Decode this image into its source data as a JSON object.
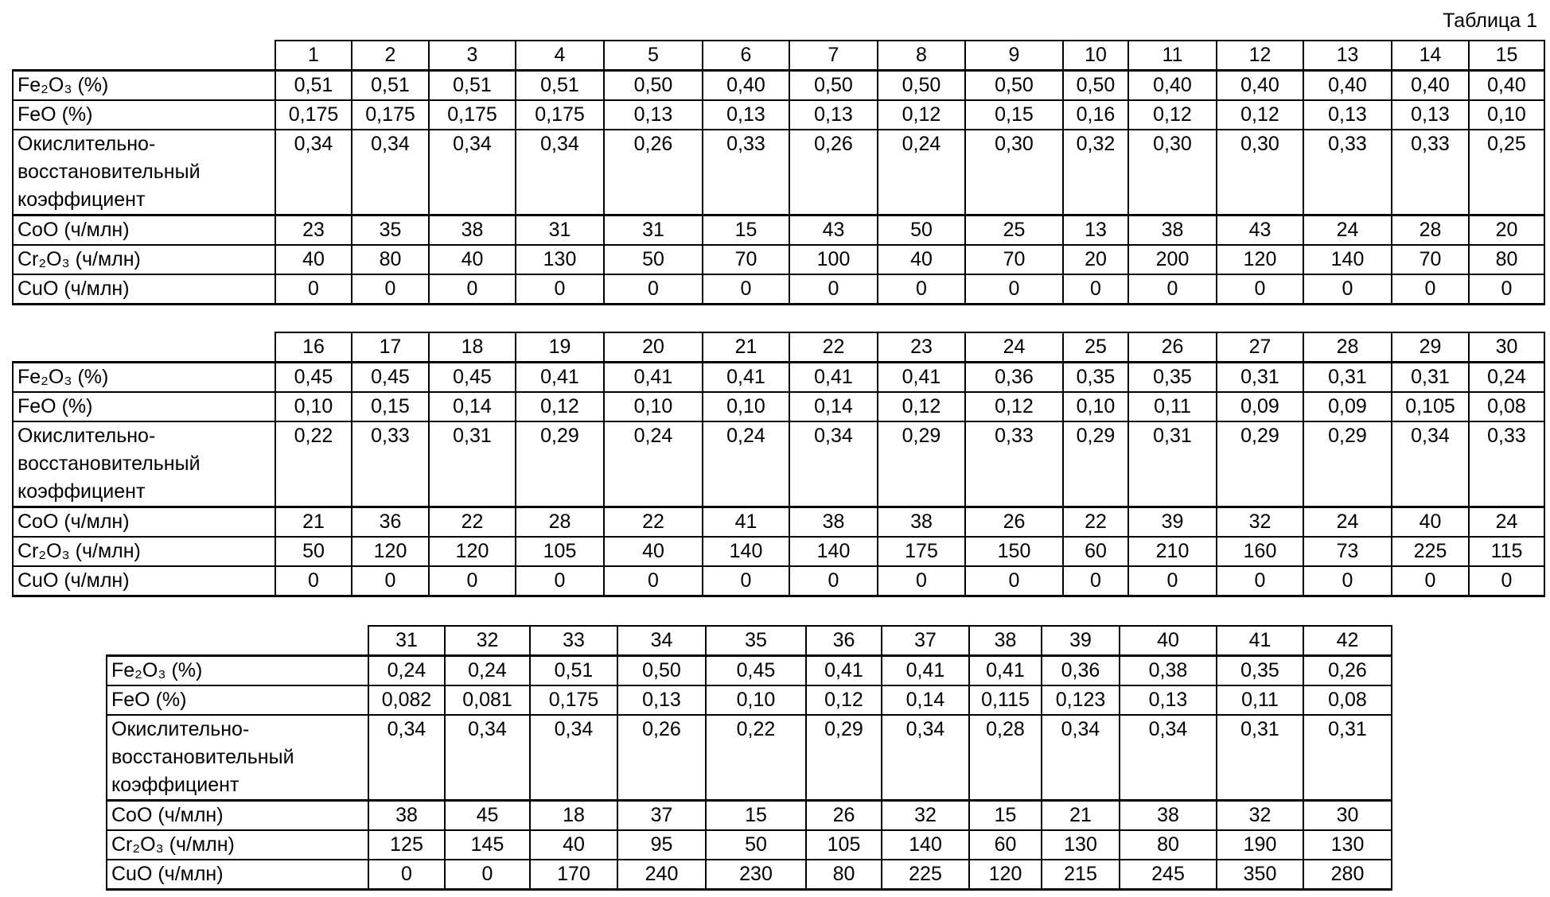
{
  "title": "Таблица 1",
  "row_labels": {
    "fe2o3": "Fe₂O₃ (%)",
    "feo": "FeO (%)",
    "redox": "Окислительно-восстановительный коэффициент",
    "coo": "CoO (ч/млн)",
    "cr2o3": "Cr₂O₃ (ч/млн)",
    "cuo": "CuO (ч/млн)"
  },
  "tables": [
    {
      "columns": [
        "1",
        "2",
        "3",
        "4",
        "5",
        "6",
        "7",
        "8",
        "9",
        "10",
        "11",
        "12",
        "13",
        "14",
        "15"
      ],
      "fe2o3": [
        "0,51",
        "0,51",
        "0,51",
        "0,51",
        "0,50",
        "0,40",
        "0,50",
        "0,50",
        "0,50",
        "0,50",
        "0,40",
        "0,40",
        "0,40",
        "0,40",
        "0,40"
      ],
      "feo": [
        "0,175",
        "0,175",
        "0,175",
        "0,175",
        "0,13",
        "0,13",
        "0,13",
        "0,12",
        "0,15",
        "0,16",
        "0,12",
        "0,12",
        "0,13",
        "0,13",
        "0,10"
      ],
      "redox": [
        "0,34",
        "0,34",
        "0,34",
        "0,34",
        "0,26",
        "0,33",
        "0,26",
        "0,24",
        "0,30",
        "0,32",
        "0,30",
        "0,30",
        "0,33",
        "0,33",
        "0,25"
      ],
      "coo": [
        "23",
        "35",
        "38",
        "31",
        "31",
        "15",
        "43",
        "50",
        "25",
        "13",
        "38",
        "43",
        "24",
        "28",
        "20"
      ],
      "cr2o3": [
        "40",
        "80",
        "40",
        "130",
        "50",
        "70",
        "100",
        "40",
        "70",
        "20",
        "200",
        "120",
        "140",
        "70",
        "80"
      ],
      "cuo": [
        "0",
        "0",
        "0",
        "0",
        "0",
        "0",
        "0",
        "0",
        "0",
        "0",
        "0",
        "0",
        "0",
        "0",
        "0"
      ]
    },
    {
      "columns": [
        "16",
        "17",
        "18",
        "19",
        "20",
        "21",
        "22",
        "23",
        "24",
        "25",
        "26",
        "27",
        "28",
        "29",
        "30"
      ],
      "fe2o3": [
        "0,45",
        "0,45",
        "0,45",
        "0,41",
        "0,41",
        "0,41",
        "0,41",
        "0,41",
        "0,36",
        "0,35",
        "0,35",
        "0,31",
        "0,31",
        "0,31",
        "0,24"
      ],
      "feo": [
        "0,10",
        "0,15",
        "0,14",
        "0,12",
        "0,10",
        "0,10",
        "0,14",
        "0,12",
        "0,12",
        "0,10",
        "0,11",
        "0,09",
        "0,09",
        "0,105",
        "0,08"
      ],
      "redox": [
        "0,22",
        "0,33",
        "0,31",
        "0,29",
        "0,24",
        "0,24",
        "0,34",
        "0,29",
        "0,33",
        "0,29",
        "0,31",
        "0,29",
        "0,29",
        "0,34",
        "0,33"
      ],
      "coo": [
        "21",
        "36",
        "22",
        "28",
        "22",
        "41",
        "38",
        "38",
        "26",
        "22",
        "39",
        "32",
        "24",
        "40",
        "24"
      ],
      "cr2o3": [
        "50",
        "120",
        "120",
        "105",
        "40",
        "140",
        "140",
        "175",
        "150",
        "60",
        "210",
        "160",
        "73",
        "225",
        "115"
      ],
      "cuo": [
        "0",
        "0",
        "0",
        "0",
        "0",
        "0",
        "0",
        "0",
        "0",
        "0",
        "0",
        "0",
        "0",
        "0",
        "0"
      ]
    },
    {
      "columns": [
        "31",
        "32",
        "33",
        "34",
        "35",
        "36",
        "37",
        "38",
        "39",
        "40",
        "41",
        "42"
      ],
      "fe2o3": [
        "0,24",
        "0,24",
        "0,51",
        "0,50",
        "0,45",
        "0,41",
        "0,41",
        "0,41",
        "0,36",
        "0,38",
        "0,35",
        "0,26"
      ],
      "feo": [
        "0,082",
        "0,081",
        "0,175",
        "0,13",
        "0,10",
        "0,12",
        "0,14",
        "0,115",
        "0,123",
        "0,13",
        "0,11",
        "0,08"
      ],
      "redox": [
        "0,34",
        "0,34",
        "0,34",
        "0,26",
        "0,22",
        "0,29",
        "0,34",
        "0,28",
        "0,34",
        "0,34",
        "0,31",
        "0,31"
      ],
      "coo": [
        "38",
        "45",
        "18",
        "37",
        "15",
        "26",
        "32",
        "15",
        "21",
        "38",
        "32",
        "30"
      ],
      "cr2o3": [
        "125",
        "145",
        "40",
        "95",
        "50",
        "105",
        "140",
        "60",
        "130",
        "80",
        "190",
        "130"
      ],
      "cuo": [
        "0",
        "0",
        "170",
        "240",
        "230",
        "80",
        "225",
        "120",
        "215",
        "245",
        "350",
        "280"
      ]
    }
  ]
}
